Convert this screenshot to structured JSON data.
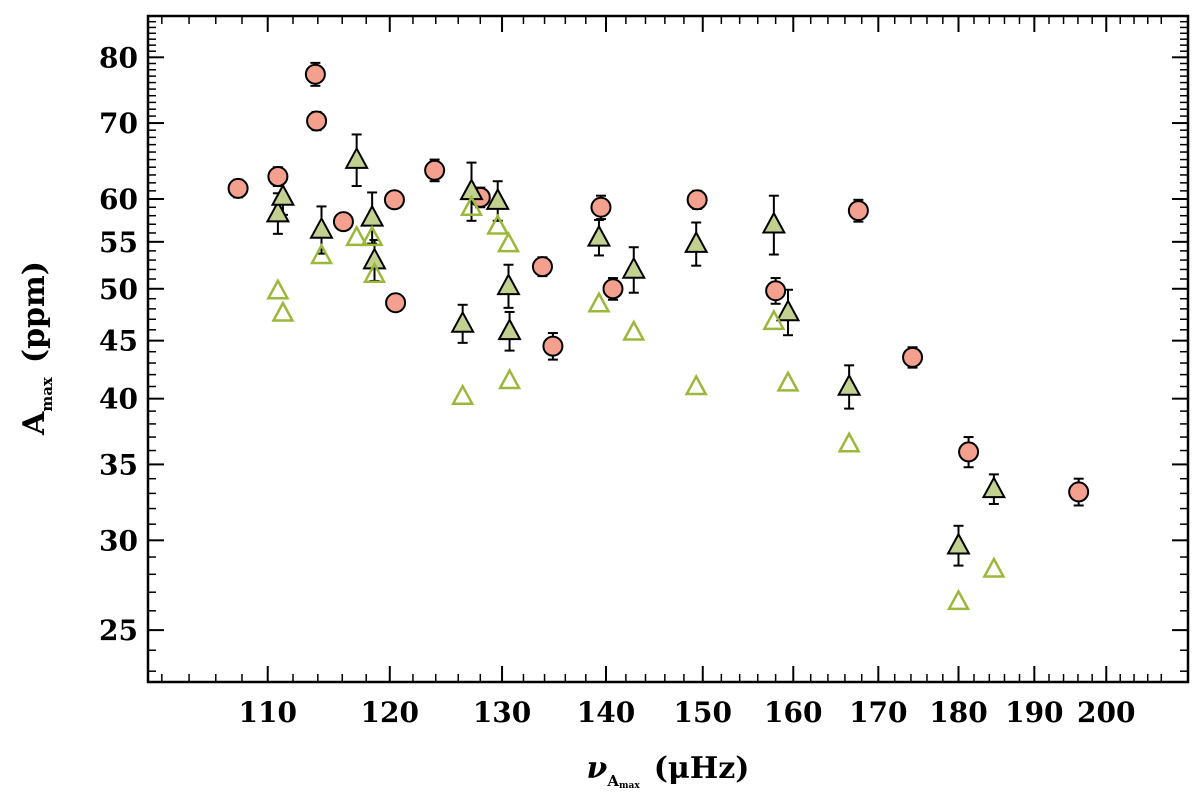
{
  "chart_data": {
    "type": "scatter",
    "x_scale": "log",
    "y_scale": "log",
    "xlim": [
      101,
      212
    ],
    "ylim": [
      22.5,
      87
    ],
    "grid": false,
    "xlabel": {
      "main": "ν",
      "sub": "A",
      "subsub": "max",
      "unit": "(μHz)"
    },
    "ylabel": {
      "main": "A",
      "sub": "max",
      "unit": "(ppm)"
    },
    "x_ticks": [
      110,
      120,
      130,
      140,
      150,
      160,
      170,
      180,
      190,
      200
    ],
    "x_tick_labels": [
      "110",
      "120",
      "130",
      "140",
      "150",
      "160",
      "170",
      "180",
      "190",
      "200"
    ],
    "y_ticks": [
      25,
      30,
      35,
      40,
      45,
      50,
      55,
      60,
      70,
      80
    ],
    "y_tick_labels": [
      "25",
      "30",
      "35",
      "40",
      "45",
      "50",
      "55",
      "60",
      "70",
      "80"
    ],
    "colors": {
      "circle_fill": "#f4a08e",
      "triangle_fill": "#c2d18f",
      "open_triangle": "#9bb83a",
      "axis": "#000000"
    },
    "series": [
      {
        "marker": "circle",
        "points": [
          {
            "x": 107.7,
            "y": 61.3,
            "err": [
              1.1,
              1.1
            ]
          },
          {
            "x": 110.8,
            "y": 62.8,
            "err": [
              1.2,
              1.2
            ]
          },
          {
            "x": 113.8,
            "y": 77.3,
            "err": [
              1.8,
              1.8
            ]
          },
          {
            "x": 113.9,
            "y": 70.3,
            "err": [
              1.3,
              1.3
            ]
          },
          {
            "x": 116.1,
            "y": 57.3,
            "err": [
              0.8,
              0.8
            ]
          },
          {
            "x": 120.4,
            "y": 59.9,
            "err": [
              0.8,
              0.8
            ]
          },
          {
            "x": 120.5,
            "y": 48.6,
            "err": [
              0.8,
              0.8
            ]
          },
          {
            "x": 123.9,
            "y": 63.6,
            "err": [
              1.4,
              1.4
            ]
          },
          {
            "x": 128.0,
            "y": 60.2,
            "err": [
              1.2,
              1.2
            ]
          },
          {
            "x": 133.8,
            "y": 52.3,
            "err": [
              1.0,
              1.0
            ]
          },
          {
            "x": 134.8,
            "y": 44.5,
            "err": [
              1.2,
              1.2
            ]
          },
          {
            "x": 139.5,
            "y": 59.0,
            "err": [
              1.4,
              1.4
            ]
          },
          {
            "x": 140.7,
            "y": 50.0,
            "err": [
              1.1,
              1.1
            ]
          },
          {
            "x": 149.4,
            "y": 59.9,
            "err": [
              1.1,
              1.1
            ]
          },
          {
            "x": 158.0,
            "y": 49.8,
            "err": [
              1.3,
              1.3
            ]
          },
          {
            "x": 167.6,
            "y": 58.6,
            "err": [
              1.3,
              1.3
            ]
          },
          {
            "x": 174.2,
            "y": 43.5,
            "err": [
              0.9,
              0.9
            ]
          },
          {
            "x": 181.3,
            "y": 35.9,
            "err": [
              1.1,
              1.1
            ]
          },
          {
            "x": 196.1,
            "y": 33.1,
            "err": [
              0.9,
              0.9
            ]
          }
        ]
      },
      {
        "marker": "triangle",
        "points": [
          {
            "x": 110.8,
            "y": 58.3,
            "err": [
              2.4,
              2.4
            ]
          },
          {
            "x": 111.2,
            "y": 60.3,
            "err": [
              2.2,
              2.2
            ]
          },
          {
            "x": 114.3,
            "y": 56.4,
            "err": [
              2.7,
              2.7
            ]
          },
          {
            "x": 117.2,
            "y": 65.0,
            "err": [
              3.4,
              3.4
            ]
          },
          {
            "x": 118.5,
            "y": 57.8,
            "err": [
              3.0,
              3.0
            ]
          },
          {
            "x": 118.7,
            "y": 53.0,
            "err": [
              2.2,
              2.2
            ]
          },
          {
            "x": 126.4,
            "y": 46.6,
            "err": [
              1.8,
              1.8
            ]
          },
          {
            "x": 127.2,
            "y": 61.0,
            "err": [
              3.6,
              3.6
            ]
          },
          {
            "x": 129.6,
            "y": 59.8,
            "err": [
              2.4,
              2.4
            ]
          },
          {
            "x": 130.6,
            "y": 50.3,
            "err": [
              2.2,
              2.2
            ]
          },
          {
            "x": 130.7,
            "y": 45.9,
            "err": [
              1.8,
              1.8
            ]
          },
          {
            "x": 139.3,
            "y": 55.5,
            "err": [
              2.0,
              2.0
            ]
          },
          {
            "x": 142.8,
            "y": 52.0,
            "err": [
              2.4,
              2.4
            ]
          },
          {
            "x": 149.3,
            "y": 54.8,
            "err": [
              2.4,
              2.4
            ]
          },
          {
            "x": 157.8,
            "y": 57.0,
            "err": [
              3.4,
              3.4
            ]
          },
          {
            "x": 159.4,
            "y": 47.7,
            "err": [
              2.2,
              2.2
            ]
          },
          {
            "x": 166.5,
            "y": 41.0,
            "err": [
              1.8,
              1.8
            ]
          },
          {
            "x": 180.0,
            "y": 29.7,
            "err": [
              1.2,
              1.2
            ]
          },
          {
            "x": 184.6,
            "y": 33.3,
            "err": [
              1.0,
              1.0
            ]
          }
        ]
      },
      {
        "marker": "open-triangle",
        "points": [
          {
            "x": 110.8,
            "y": 49.8
          },
          {
            "x": 111.2,
            "y": 47.6
          },
          {
            "x": 114.3,
            "y": 53.5
          },
          {
            "x": 117.2,
            "y": 55.5
          },
          {
            "x": 118.5,
            "y": 55.5
          },
          {
            "x": 118.7,
            "y": 51.5
          },
          {
            "x": 126.4,
            "y": 40.2
          },
          {
            "x": 127.2,
            "y": 59.0
          },
          {
            "x": 129.6,
            "y": 56.8
          },
          {
            "x": 130.6,
            "y": 54.8
          },
          {
            "x": 130.7,
            "y": 41.5
          },
          {
            "x": 139.3,
            "y": 48.5
          },
          {
            "x": 142.8,
            "y": 45.8
          },
          {
            "x": 149.3,
            "y": 41.0
          },
          {
            "x": 157.8,
            "y": 46.8
          },
          {
            "x": 159.4,
            "y": 41.3
          },
          {
            "x": 166.5,
            "y": 36.5
          },
          {
            "x": 180.0,
            "y": 26.5
          },
          {
            "x": 184.6,
            "y": 28.3
          }
        ]
      }
    ]
  }
}
